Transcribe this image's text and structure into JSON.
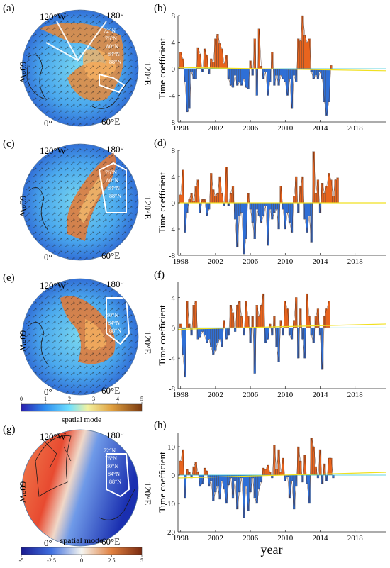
{
  "figure": {
    "bottom_xlabel": "year",
    "colorbar1_label": "spatial mode",
    "colorbar1_ticks": [
      "0",
      "1",
      "2",
      "3",
      "4",
      "5"
    ],
    "colorbar2_label": "spatial mode",
    "colorbar2_ticks": [
      "-5",
      "-2.5",
      "0",
      "2.5",
      "5"
    ]
  },
  "maps": [
    {
      "panel": "(a)",
      "lon_labels": [
        "120°W",
        "180°",
        "60°W",
        "120°E",
        "0°",
        "60°E"
      ],
      "lat_labels": [
        "72°N",
        "76°N",
        "80°N",
        "84°N",
        "88°N"
      ]
    },
    {
      "panel": "(c)",
      "lon_labels": [
        "120°W",
        "180°",
        "60°W",
        "120°E",
        "0°",
        "60°E"
      ],
      "lat_labels": [
        "76°N",
        "80°N",
        "84°N",
        "88°N"
      ]
    },
    {
      "panel": "(e)",
      "lon_labels": [
        "120°W",
        "180°",
        "60°W",
        "120°E",
        "0°",
        "60°E"
      ],
      "lat_labels": [
        "80°N",
        "84°N",
        "88°N"
      ]
    },
    {
      "panel": "(g)",
      "lon_labels": [
        "120°W",
        "180°",
        "60°W",
        "120°E",
        "0°",
        "60°E"
      ],
      "lat_labels": [
        "72°N",
        "76°N",
        "80°N",
        "84°N",
        "88°N"
      ]
    }
  ],
  "chart_data": [
    {
      "type": "bar",
      "panel": "(b)",
      "ylabel": "Time coefficient",
      "ylim": [
        -8,
        8
      ],
      "yticks": [
        -8,
        -4,
        0,
        4,
        8
      ],
      "xlim": [
        1997.7,
        2021.6
      ],
      "xticks": [
        1998,
        2002,
        2006,
        2010,
        2014,
        2018
      ],
      "x_start": 1998.0,
      "x_step": 0.25,
      "values": [
        2.5,
        1.5,
        -2.0,
        -6.5,
        -6.0,
        -0.5,
        -1.5,
        -1.5,
        3.2,
        2.2,
        -0.5,
        3.0,
        2.0,
        -0.8,
        1.5,
        1.0,
        4.5,
        5.2,
        3.8,
        3.0,
        0.8,
        2.0,
        -1.5,
        -2.5,
        -2.8,
        -1.0,
        -2.5,
        -2.0,
        -2.5,
        -1.5,
        -2.8,
        -3.0,
        1.2,
        -1.0,
        4.5,
        -4.0,
        6.0,
        0.4,
        -1.5,
        -0.5,
        -4.0,
        -2.0,
        2.5,
        -2.5,
        -1.0,
        -2.5,
        -1.0,
        -1.5,
        -2.0,
        -4.0,
        -1.5,
        -6.0,
        -1.0,
        -2.0,
        4.5,
        4.2,
        8.0,
        5.0,
        4.0,
        4.5,
        -0.5,
        -1.5,
        -1.0,
        -1.5,
        -0.5,
        -1.5,
        -5.0,
        -7.0,
        -5.0,
        0.5
      ],
      "trend": [
        0.2,
        -0.3
      ]
    },
    {
      "type": "bar",
      "panel": "(d)",
      "ylabel": "Time coefficient",
      "ylim": [
        -8,
        8
      ],
      "yticks": [
        -8,
        -4,
        0,
        4,
        8
      ],
      "xlim": [
        1997.7,
        2021.6
      ],
      "xticks": [
        1998,
        2002,
        2006,
        2010,
        2014,
        2018
      ],
      "x_start": 1998.0,
      "x_step": 0.25,
      "values": [
        1.2,
        5.0,
        -4.5,
        -1.5,
        0.5,
        1.5,
        0.3,
        2.5,
        3.5,
        -1.5,
        0.5,
        0.5,
        -2.0,
        -1.0,
        4.5,
        2.0,
        1.0,
        1.5,
        4.0,
        1.5,
        -0.5,
        5.5,
        -0.5,
        1.5,
        2.5,
        -2.5,
        -6.8,
        -2.0,
        -1.5,
        -7.8,
        -5.5,
        1.5,
        -1.0,
        -3.0,
        -5.5,
        -1.0,
        -2.0,
        -3.0,
        -2.0,
        -0.5,
        -6.5,
        -1.0,
        -2.5,
        -1.5,
        -1.0,
        -4.0,
        2.5,
        -1.0,
        -4.0,
        -1.5,
        -3.0,
        -4.5,
        1.0,
        4.0,
        -1.5,
        2.5,
        4.0,
        -2.5,
        -4.5,
        -2.0,
        -6.0,
        7.8,
        1.5,
        3.5,
        -1.5,
        3.0,
        1.5,
        2.5,
        4.5,
        3.5,
        1.0,
        3.5,
        3.8
      ],
      "trend": [
        0.0,
        0.0
      ]
    },
    {
      "type": "bar",
      "panel": "(f)",
      "ylabel": "Time coefficient",
      "ylim": [
        -8,
        6
      ],
      "yticks": [
        -8,
        -4,
        0,
        4
      ],
      "xlim": [
        1997.7,
        2021.6
      ],
      "xticks": [
        1998,
        2002,
        2006,
        2010,
        2014,
        2018
      ],
      "x_start": 1998.0,
      "x_step": 0.25,
      "values": [
        0.5,
        -3.5,
        -6.5,
        3.5,
        0.5,
        -1.0,
        3.0,
        3.5,
        -1.5,
        -1.2,
        -0.5,
        -1.0,
        -2.0,
        -1.5,
        -2.5,
        -3.5,
        -3.0,
        -2.0,
        -1.5,
        -2.5,
        1.0,
        -1.5,
        -1.0,
        3.0,
        2.0,
        -0.5,
        3.0,
        3.5,
        1.5,
        -1.0,
        3.5,
        1.5,
        -2.0,
        1.5,
        -6.0,
        3.0,
        1.5,
        3.0,
        4.5,
        -2.0,
        -1.5,
        0.5,
        -1.0,
        1.5,
        -2.5,
        -4.5,
        1.0,
        -1.0,
        3.5,
        2.5,
        -1.0,
        -1.5,
        1.0,
        4.0,
        -4.0,
        2.5,
        -1.5,
        -4.0,
        4.5,
        1.5,
        -1.0,
        -2.0,
        1.5,
        2.5,
        -1.0,
        -5.5,
        1.5,
        2.5,
        3.5
      ],
      "trend": [
        -0.2,
        0.5
      ]
    },
    {
      "type": "bar",
      "panel": "(h)",
      "ylabel": "Time coefficient",
      "ylim": [
        -20,
        15
      ],
      "yticks": [
        -20,
        -10,
        0,
        10
      ],
      "xlim": [
        1997.7,
        2021.6
      ],
      "xticks": [
        1998,
        2002,
        2006,
        2010,
        2014,
        2018
      ],
      "x_start": 1998.0,
      "x_step": 0.25,
      "values": [
        5.0,
        9.0,
        -8.0,
        2.0,
        1.0,
        -1.0,
        3.0,
        4.5,
        1.0,
        -4.0,
        -3.0,
        2.5,
        1.5,
        -4.0,
        -2.0,
        -9.0,
        -6.0,
        -4.0,
        -8.5,
        -2.0,
        -5.0,
        -10.0,
        -3.5,
        -1.0,
        -8.0,
        -2.0,
        -12.0,
        -6.0,
        -1.0,
        -15.0,
        -4.0,
        -12.5,
        -6.0,
        -1.0,
        -8.0,
        -10.0,
        -5.0,
        -2.5,
        2.5,
        2.0,
        3.5,
        1.0,
        -1.0,
        10.5,
        2.0,
        9.0,
        1.0,
        6.0,
        -2.0,
        -0.5,
        -8.0,
        -2.0,
        -12.0,
        -4.0,
        10.0,
        5.0,
        -2.5,
        7.0,
        -3.0,
        -10.0,
        13.0,
        10.0,
        3.0,
        -1.0,
        9.0,
        -3.0,
        4.0,
        -2.0,
        6.0,
        6.0,
        -1.0
      ],
      "trend": [
        -1.0,
        1.0
      ]
    }
  ],
  "colors": {
    "positive_bar": "#e8641e",
    "negative_bar": "#2f6fd6",
    "trend_line": "#f0e020",
    "zero_line": "#30c8d8"
  }
}
